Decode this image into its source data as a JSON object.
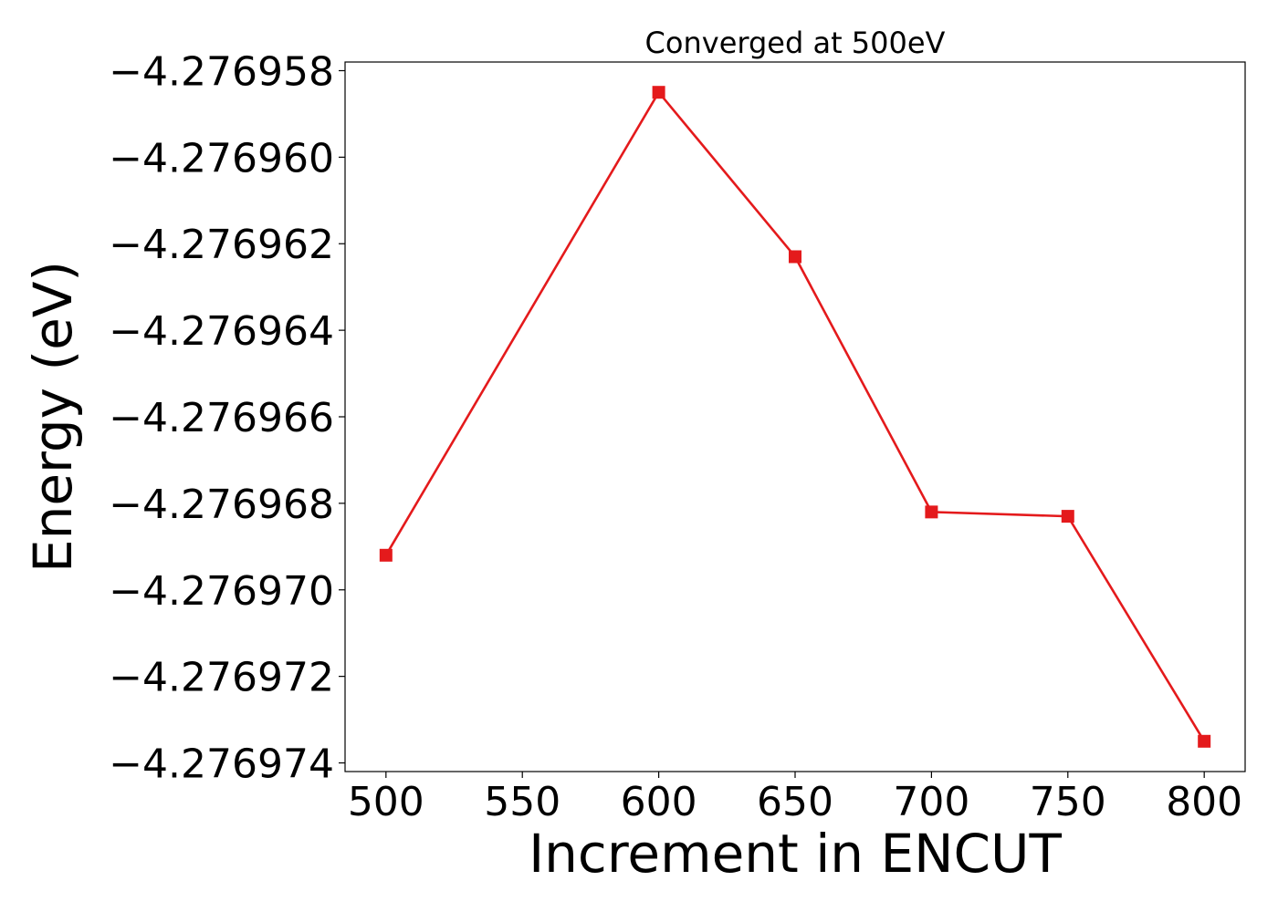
{
  "chart_data": {
    "type": "line",
    "title": "Converged at 500eV",
    "xlabel": "Increment in ENCUT",
    "ylabel": "Energy (eV)",
    "x": [
      500,
      600,
      650,
      700,
      750,
      800
    ],
    "series": [
      {
        "values": [
          -4.2769692,
          -4.2769585,
          -4.2769623,
          -4.2769682,
          -4.2769683,
          -4.2769735
        ],
        "color": "#e41a1c",
        "marker": "square"
      }
    ],
    "xticks": [
      500,
      550,
      600,
      650,
      700,
      750,
      800
    ],
    "xtick_labels": [
      "500",
      "550",
      "600",
      "650",
      "700",
      "750",
      "800"
    ],
    "yticks": [
      -4.276958,
      -4.27696,
      -4.276962,
      -4.276964,
      -4.276966,
      -4.276968,
      -4.27697,
      -4.276972,
      -4.276974
    ],
    "ytick_labels": [
      "−4.276958",
      "−4.276960",
      "−4.276962",
      "−4.276964",
      "−4.276966",
      "−4.276968",
      "−4.276970",
      "−4.276972",
      "−4.276974"
    ],
    "xlim": [
      485,
      815
    ],
    "ylim": [
      -4.2769742,
      -4.2769578
    ],
    "grid": false,
    "legend": false
  }
}
